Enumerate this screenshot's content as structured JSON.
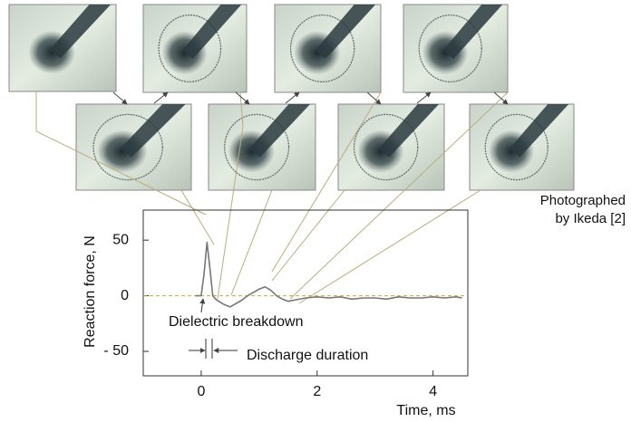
{
  "chart_data": {
    "type": "line",
    "x_label": "Time, ms",
    "y_label": "Reaction force, N",
    "annotations": [
      "Dielectric breakdown",
      "Discharge duration",
      "Photographed",
      "by Ikeda [2]"
    ],
    "x": [
      -0.1,
      0,
      0.05,
      0.1,
      0.15,
      0.2,
      0.25,
      0.3,
      0.4,
      0.5,
      0.6,
      0.7,
      0.8,
      0.9,
      1.0,
      1.1,
      1.2,
      1.3,
      1.4,
      1.5,
      1.6,
      1.8,
      2.0,
      2.2,
      2.4,
      2.6,
      2.8,
      3.0,
      3.2,
      3.4,
      3.6,
      3.8,
      4.0,
      4.2,
      4.4,
      4.5
    ],
    "series": [
      {
        "color": "#777777",
        "values": [
          0,
          0,
          20,
          48,
          25,
          0,
          -3,
          -5,
          -8,
          -10,
          -7,
          -4,
          0,
          3,
          6,
          8,
          5,
          0,
          -3,
          -5,
          -4,
          -2,
          -1,
          -2,
          -1,
          -3,
          -2,
          -2,
          -3,
          -1,
          -2,
          -2,
          -1,
          -2,
          -1,
          -2
        ]
      }
    ],
    "xlim": [
      -1,
      4.6
    ],
    "ylim": [
      -72,
      77
    ],
    "xticks": [
      0,
      2,
      4
    ],
    "yticks": [
      {
        "value": -50,
        "label": "- 50"
      },
      0,
      50
    ]
  }
}
